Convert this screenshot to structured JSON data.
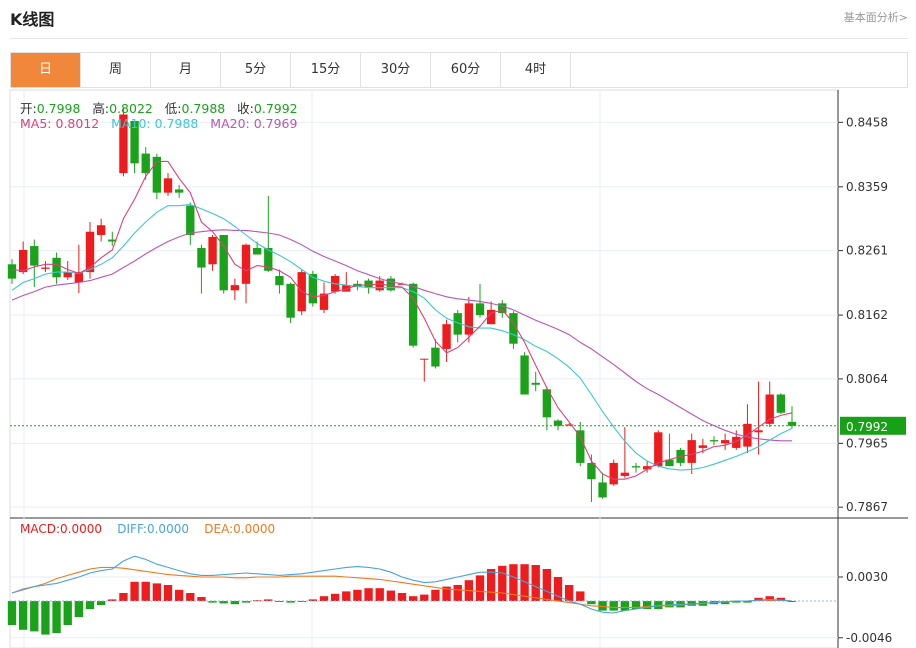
{
  "header": {
    "title": "K线图",
    "link": "基本面分析>"
  },
  "tabs": [
    {
      "label": "日",
      "active": true
    },
    {
      "label": "周"
    },
    {
      "label": "月"
    },
    {
      "label": "5分"
    },
    {
      "label": "15分"
    },
    {
      "label": "30分"
    },
    {
      "label": "60分"
    },
    {
      "label": "4时"
    }
  ],
  "ohlc_info": {
    "open_label": "开:",
    "open": "0.7998",
    "high_label": "高:",
    "high": "0.8022",
    "low_label": "低:",
    "low": "0.7988",
    "close_label": "收:",
    "close": "0.7992"
  },
  "ma_info": {
    "ma5_label": "MA5:",
    "ma5": "0.8012",
    "ma10_label": "MA10:",
    "ma10": "0.7988",
    "ma20_label": "MA20:",
    "ma20": "0.7969"
  },
  "macd_info": {
    "macd_label": "MACD:",
    "macd": "0.0000",
    "diff_label": "DIFF:",
    "diff": "0.0000",
    "dea_label": "DEA:",
    "dea": "0.0000"
  },
  "colors": {
    "up": "#ee1c1c",
    "down": "#1aa31a",
    "ma5": "#e0407a",
    "ma10": "#3ec6d6",
    "ma20": "#bb55bb",
    "diff": "#4aa3df",
    "dea": "#f07a1e",
    "tab_active": "#f0873a"
  },
  "chart_data": {
    "type": "candlestick",
    "price_axis": {
      "ticks": [
        "0.8458",
        "0.8359",
        "0.8261",
        "0.8162",
        "0.8064",
        "0.7965",
        "0.7867"
      ],
      "ylim": [
        0.7855,
        0.848
      ]
    },
    "last_price": "0.7992",
    "macd_axis": {
      "ticks": [
        "0.0030",
        "-0.0046"
      ]
    },
    "candles": [
      [
        0.824,
        0.8218,
        0.8248,
        0.821
      ],
      [
        0.8228,
        0.8262,
        0.8275,
        0.8225
      ],
      [
        0.8268,
        0.8238,
        0.8278,
        0.8205
      ],
      [
        0.8233,
        0.8235,
        0.8245,
        0.8228
      ],
      [
        0.825,
        0.822,
        0.8258,
        0.821
      ],
      [
        0.822,
        0.8228,
        0.8245,
        0.8216
      ],
      [
        0.8212,
        0.8228,
        0.827,
        0.8196
      ],
      [
        0.8228,
        0.829,
        0.8305,
        0.8218
      ],
      [
        0.8285,
        0.83,
        0.831,
        0.8275
      ],
      [
        0.8278,
        0.8275,
        0.829,
        0.8268
      ],
      [
        0.838,
        0.847,
        0.848,
        0.8375
      ],
      [
        0.846,
        0.8395,
        0.846,
        0.838
      ],
      [
        0.841,
        0.838,
        0.842,
        0.837
      ],
      [
        0.8405,
        0.835,
        0.841,
        0.834
      ],
      [
        0.835,
        0.8372,
        0.838,
        0.8345
      ],
      [
        0.8355,
        0.835,
        0.8362,
        0.8342
      ],
      [
        0.833,
        0.8285,
        0.8335,
        0.827
      ],
      [
        0.8265,
        0.8235,
        0.827,
        0.8195
      ],
      [
        0.824,
        0.8282,
        0.8285,
        0.823
      ],
      [
        0.8285,
        0.82,
        0.8285,
        0.8195
      ],
      [
        0.82,
        0.8208,
        0.8218,
        0.8185
      ],
      [
        0.821,
        0.827,
        0.8272,
        0.818
      ],
      [
        0.8265,
        0.8255,
        0.8275,
        0.8255
      ],
      [
        0.8265,
        0.823,
        0.8345,
        0.8228
      ],
      [
        0.8222,
        0.8208,
        0.8232,
        0.8195
      ],
      [
        0.821,
        0.8158,
        0.8212,
        0.815
      ],
      [
        0.8168,
        0.8228,
        0.8232,
        0.8162
      ],
      [
        0.8225,
        0.818,
        0.823,
        0.8175
      ],
      [
        0.817,
        0.8195,
        0.8212,
        0.8165
      ],
      [
        0.8198,
        0.8222,
        0.8225,
        0.8195
      ],
      [
        0.8198,
        0.8208,
        0.8228,
        0.8198
      ],
      [
        0.821,
        0.8205,
        0.8215,
        0.82
      ],
      [
        0.8215,
        0.8205,
        0.8218,
        0.8195
      ],
      [
        0.82,
        0.8215,
        0.8222,
        0.8198
      ],
      [
        0.8218,
        0.82,
        0.8222,
        0.8198
      ],
      [
        0.821,
        0.821,
        0.8212,
        0.821
      ],
      [
        0.821,
        0.8115,
        0.8212,
        0.8112
      ],
      [
        0.8095,
        0.8095,
        0.8095,
        0.806
      ],
      [
        0.8112,
        0.8083,
        0.8125,
        0.808
      ],
      [
        0.811,
        0.8148,
        0.8155,
        0.809
      ],
      [
        0.8165,
        0.8132,
        0.817,
        0.812
      ],
      [
        0.8132,
        0.818,
        0.819,
        0.812
      ],
      [
        0.818,
        0.8162,
        0.821,
        0.8158
      ],
      [
        0.8148,
        0.817,
        0.8183,
        0.8148
      ],
      [
        0.818,
        0.8165,
        0.8185,
        0.8158
      ],
      [
        0.8165,
        0.8118,
        0.8168,
        0.811
      ],
      [
        0.81,
        0.804,
        0.8105,
        0.804
      ],
      [
        0.8058,
        0.8055,
        0.8075,
        0.8045
      ],
      [
        0.8048,
        0.8005,
        0.8052,
        0.7985
      ],
      [
        0.8,
        0.7992,
        0.8002,
        0.7985
      ],
      [
        0.7994,
        0.7994,
        0.7996,
        0.7992
      ],
      [
        0.7985,
        0.7935,
        0.7998,
        0.793
      ],
      [
        0.7935,
        0.791,
        0.7948,
        0.7875
      ],
      [
        0.7905,
        0.7882,
        0.792,
        0.788
      ],
      [
        0.7902,
        0.7935,
        0.794,
        0.79
      ],
      [
        0.7915,
        0.792,
        0.799,
        0.7912
      ],
      [
        0.793,
        0.7928,
        0.7935,
        0.792
      ],
      [
        0.7925,
        0.793,
        0.7938,
        0.792
      ],
      [
        0.793,
        0.7982,
        0.7985,
        0.7928
      ],
      [
        0.794,
        0.793,
        0.798,
        0.793
      ],
      [
        0.7955,
        0.7935,
        0.7958,
        0.793
      ],
      [
        0.7935,
        0.797,
        0.798,
        0.7918
      ],
      [
        0.7958,
        0.7962,
        0.7972,
        0.795
      ],
      [
        0.797,
        0.7968,
        0.7976,
        0.7962
      ],
      [
        0.7965,
        0.797,
        0.798,
        0.7955
      ],
      [
        0.7958,
        0.7975,
        0.7985,
        0.7955
      ],
      [
        0.796,
        0.7995,
        0.8025,
        0.795
      ],
      [
        0.7982,
        0.7985,
        0.806,
        0.7948
      ],
      [
        0.7995,
        0.804,
        0.806,
        0.799
      ],
      [
        0.804,
        0.8012,
        0.8042,
        0.801
      ],
      [
        0.7998,
        0.7992,
        0.8022,
        0.7988
      ]
    ],
    "ma5": [
      0.8232,
      0.823,
      0.8236,
      0.824,
      0.824,
      0.8232,
      0.8226,
      0.8235,
      0.825,
      0.8262,
      0.831,
      0.834,
      0.8375,
      0.8398,
      0.8398,
      0.8372,
      0.835,
      0.8305,
      0.829,
      0.8268,
      0.824,
      0.823,
      0.8238,
      0.8236,
      0.823,
      0.822,
      0.8198,
      0.819,
      0.8192,
      0.8198,
      0.8202,
      0.8208,
      0.8208,
      0.821,
      0.8207,
      0.8205,
      0.8188,
      0.8157,
      0.8122,
      0.8104,
      0.8112,
      0.8128,
      0.8145,
      0.8165,
      0.817,
      0.815,
      0.812,
      0.8085,
      0.805,
      0.802,
      0.7998,
      0.7975,
      0.7938,
      0.7918,
      0.791,
      0.791,
      0.7915,
      0.7925,
      0.7935,
      0.794,
      0.7945,
      0.7948,
      0.7953,
      0.796,
      0.7962,
      0.7968,
      0.7978,
      0.799,
      0.8002,
      0.8008,
      0.8012
    ],
    "ma10": [
      0.82,
      0.8212,
      0.8218,
      0.8225,
      0.8228,
      0.8228,
      0.8226,
      0.8232,
      0.824,
      0.825,
      0.8268,
      0.8288,
      0.8305,
      0.832,
      0.833,
      0.833,
      0.8332,
      0.8325,
      0.8318,
      0.831,
      0.8298,
      0.8285,
      0.8272,
      0.8262,
      0.8254,
      0.8244,
      0.8232,
      0.822,
      0.8214,
      0.821,
      0.8208,
      0.8206,
      0.8204,
      0.8204,
      0.8204,
      0.8204,
      0.8198,
      0.8188,
      0.817,
      0.8157,
      0.815,
      0.8144,
      0.8142,
      0.8142,
      0.8138,
      0.8132,
      0.8124,
      0.8114,
      0.8106,
      0.8095,
      0.8082,
      0.8065,
      0.804,
      0.8014,
      0.799,
      0.7968,
      0.795,
      0.7938,
      0.793,
      0.7926,
      0.7924,
      0.7925,
      0.7928,
      0.7933,
      0.7939,
      0.7945,
      0.7952,
      0.796,
      0.797,
      0.798,
      0.7988
    ],
    "ma20": [
      0.8185,
      0.8192,
      0.8198,
      0.8205,
      0.8208,
      0.821,
      0.8212,
      0.8215,
      0.822,
      0.8225,
      0.8235,
      0.8245,
      0.8256,
      0.8266,
      0.8275,
      0.8282,
      0.8288,
      0.829,
      0.8292,
      0.8293,
      0.8292,
      0.8292,
      0.829,
      0.8288,
      0.8285,
      0.8278,
      0.827,
      0.826,
      0.8252,
      0.8245,
      0.8238,
      0.823,
      0.8224,
      0.8218,
      0.8213,
      0.821,
      0.8206,
      0.82,
      0.8195,
      0.819,
      0.8187,
      0.8185,
      0.8183,
      0.818,
      0.8176,
      0.817,
      0.8162,
      0.8154,
      0.8147,
      0.814,
      0.8132,
      0.812,
      0.811,
      0.8098,
      0.8086,
      0.8073,
      0.806,
      0.8049,
      0.804,
      0.803,
      0.802,
      0.801,
      0.8,
      0.7992,
      0.7985,
      0.7979,
      0.7975,
      0.7972,
      0.797,
      0.7969,
      0.7969
    ],
    "macd": [
      -0.003,
      -0.0036,
      -0.0038,
      -0.0042,
      -0.004,
      -0.003,
      -0.002,
      -0.001,
      -0.0005,
      0.0002,
      0.001,
      0.0024,
      0.0024,
      0.0022,
      0.002,
      0.0014,
      0.001,
      0.0005,
      -0.0002,
      -0.0003,
      -0.0004,
      -0.0002,
      0.0001,
      0.0002,
      -0.0001,
      -0.0002,
      -0.0001,
      0.0002,
      0.0006,
      0.0009,
      0.0012,
      0.0014,
      0.0016,
      0.0016,
      0.0013,
      0.001,
      0.0006,
      0.0008,
      0.0014,
      0.0018,
      0.002,
      0.0026,
      0.0032,
      0.004,
      0.0044,
      0.0046,
      0.0046,
      0.0045,
      0.004,
      0.003,
      0.002,
      0.0012,
      -0.0004,
      -0.0012,
      -0.0012,
      -0.0012,
      -0.001,
      -0.001,
      -0.001,
      -0.0008,
      -0.0008,
      -0.0006,
      -0.0006,
      -0.0004,
      -0.0004,
      -0.0002,
      -0.0002,
      0.0004,
      0.0006,
      0.0004,
      0.0
    ],
    "diff": [
      0.001,
      0.0015,
      0.0018,
      0.002,
      0.0022,
      0.0026,
      0.003,
      0.0035,
      0.0038,
      0.004,
      0.005,
      0.0056,
      0.0052,
      0.0046,
      0.0042,
      0.0038,
      0.0034,
      0.0032,
      0.0032,
      0.0033,
      0.0034,
      0.0035,
      0.0034,
      0.0033,
      0.0032,
      0.0033,
      0.0034,
      0.0036,
      0.0038,
      0.004,
      0.0042,
      0.0043,
      0.0042,
      0.004,
      0.0036,
      0.003,
      0.0026,
      0.0023,
      0.0024,
      0.0027,
      0.003,
      0.0033,
      0.0036,
      0.0036,
      0.0035,
      0.003,
      0.0024,
      0.0018,
      0.0012,
      0.0006,
      0.0,
      -0.0004,
      -0.001,
      -0.0014,
      -0.0015,
      -0.0012,
      -0.001,
      -0.0008,
      -0.0006,
      -0.0005,
      -0.0004,
      -0.0004,
      -0.0003,
      -0.0002,
      -0.0001,
      0.0,
      0.0,
      0.0001,
      0.0002,
      0.0001,
      0.0
    ],
    "dea": [
      0.001,
      0.0014,
      0.0018,
      0.0022,
      0.0028,
      0.0032,
      0.0036,
      0.004,
      0.0042,
      0.0042,
      0.0041,
      0.0039,
      0.0037,
      0.0035,
      0.0033,
      0.0032,
      0.0031,
      0.003,
      0.003,
      0.003,
      0.0029,
      0.0029,
      0.003,
      0.003,
      0.003,
      0.0031,
      0.0031,
      0.0031,
      0.0031,
      0.0031,
      0.003,
      0.0029,
      0.0028,
      0.0027,
      0.0025,
      0.0023,
      0.0021,
      0.0019,
      0.0017,
      0.0015,
      0.0014,
      0.0013,
      0.0012,
      0.0011,
      0.001,
      0.0008,
      0.0006,
      0.0004,
      0.0002,
      0.0,
      -0.0002,
      -0.0004,
      -0.0006,
      -0.0007,
      -0.0008,
      -0.0008,
      -0.0008,
      -0.0007,
      -0.0006,
      -0.0006,
      -0.0005,
      -0.0004,
      -0.0003,
      -0.0002,
      -0.0001,
      0.0,
      0.0,
      0.0001,
      0.0001,
      0.0001,
      0.0
    ]
  }
}
